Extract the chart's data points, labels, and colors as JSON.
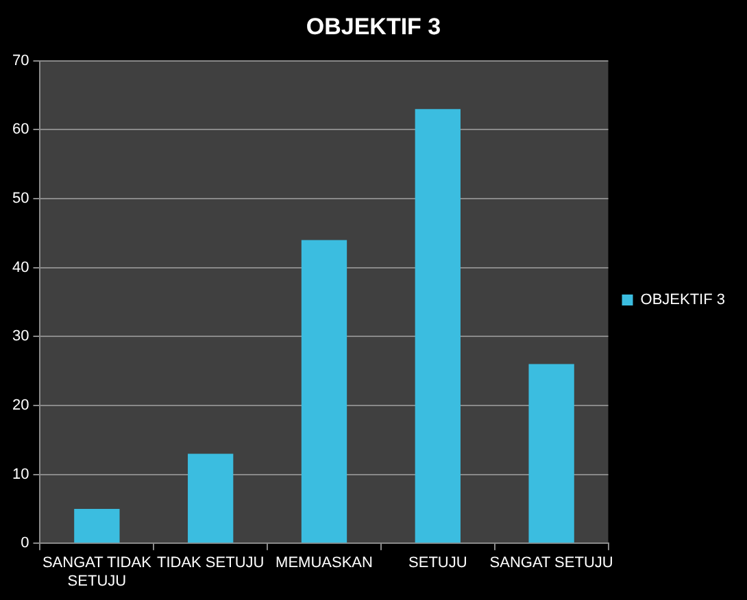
{
  "chart_data": {
    "type": "bar",
    "title": "OBJEKTIF 3",
    "categories": [
      "SANGAT TIDAK SETUJU",
      "TIDAK SETUJU",
      "MEMUASKAN",
      "SETUJU",
      "SANGAT SETUJU"
    ],
    "series": [
      {
        "name": "OBJEKTIF 3",
        "color": "#3bbde0",
        "values": [
          5,
          13,
          44,
          63,
          26
        ]
      }
    ],
    "ylim": [
      0,
      70
    ],
    "yticks": [
      0,
      10,
      20,
      30,
      40,
      50,
      60,
      70
    ],
    "grid": "y",
    "legend": "right"
  }
}
